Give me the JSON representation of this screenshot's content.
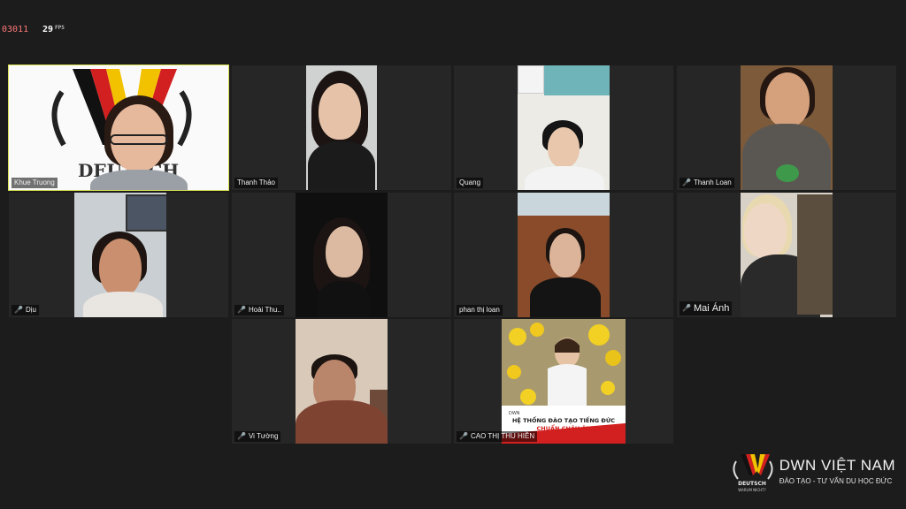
{
  "hud": {
    "session_id": "03011",
    "fps_value": "29",
    "fps_unit": "FPS"
  },
  "participants": [
    {
      "name": "Khue Truong",
      "muted": false,
      "active": true
    },
    {
      "name": "Thanh Thảo",
      "muted": false,
      "active": false
    },
    {
      "name": "Quang",
      "muted": false,
      "active": false
    },
    {
      "name": "Thanh Loan",
      "muted": true,
      "active": false
    },
    {
      "name": "Dịu",
      "muted": true,
      "active": false
    },
    {
      "name": "Hoài Thu..",
      "muted": true,
      "active": false
    },
    {
      "name": "phan thị loan",
      "muted": false,
      "active": false
    },
    {
      "name": "Mai Ánh",
      "muted": true,
      "active": false
    },
    {
      "name": "Vi Tường",
      "muted": true,
      "active": false
    },
    {
      "name": "CAO THỊ THU HIỀN",
      "muted": true,
      "active": false
    }
  ],
  "tile_texts": {
    "deutsch_banner": "DEUTSCH",
    "poster_line1": "HỆ THỐNG ĐÀO TẠO TIẾNG ĐỨC",
    "poster_line2": "CHUẨN CHÂU ÂU"
  },
  "watermark": {
    "title": "DWN VIỆT NAM",
    "subtitle": "ĐÀO TẠO - TƯ VẤN DU HỌC ĐỨC",
    "badge_text": "DEUTSCH",
    "badge_sub": "WARUM NICHT?"
  },
  "colors": {
    "active_border": "#d9e14f",
    "muted_mic": "#ff4b4b",
    "brand_red": "#d21f1f",
    "brand_gold": "#f2c200"
  }
}
